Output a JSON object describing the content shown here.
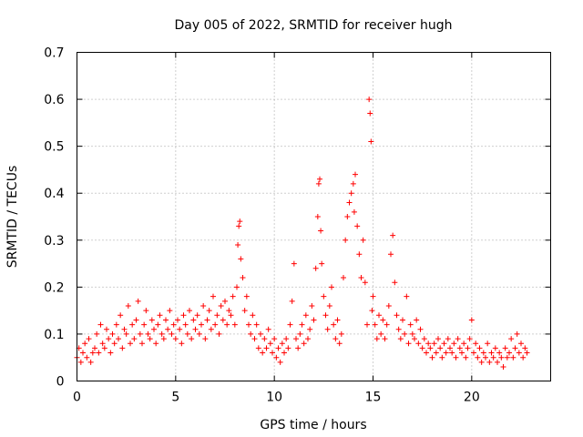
{
  "chart_data": {
    "type": "scatter",
    "title": "Day 005 of 2022, SRMTID for receiver hugh",
    "xlabel": "GPS time / hours",
    "ylabel": "SRMTID / TECUs",
    "xlim": [
      0,
      24
    ],
    "ylim": [
      0,
      0.7
    ],
    "xticks": [
      0,
      5,
      10,
      15,
      20
    ],
    "yticks": [
      0,
      0.1,
      0.2,
      0.3,
      0.4,
      0.5,
      0.6,
      0.7
    ],
    "x_tick_labels": [
      "0",
      "5",
      "10",
      "15",
      "20"
    ],
    "y_tick_labels": [
      "0",
      "0.1",
      "0.2",
      "0.3",
      "0.4",
      "0.5",
      "0.6",
      "0.7"
    ],
    "grid": true,
    "marker": "+",
    "colors": {
      "series": "#ff0000",
      "grid": "#a0a0a0"
    },
    "series": [
      {
        "name": "SRMTID",
        "points": [
          [
            0.0,
            0.05
          ],
          [
            0.1,
            0.07
          ],
          [
            0.2,
            0.04
          ],
          [
            0.3,
            0.06
          ],
          [
            0.4,
            0.08
          ],
          [
            0.5,
            0.05
          ],
          [
            0.6,
            0.09
          ],
          [
            0.7,
            0.04
          ],
          [
            0.8,
            0.06
          ],
          [
            0.9,
            0.07
          ],
          [
            1.0,
            0.1
          ],
          [
            1.1,
            0.06
          ],
          [
            1.2,
            0.12
          ],
          [
            1.3,
            0.08
          ],
          [
            1.4,
            0.07
          ],
          [
            1.5,
            0.11
          ],
          [
            1.6,
            0.09
          ],
          [
            1.7,
            0.06
          ],
          [
            1.8,
            0.1
          ],
          [
            1.9,
            0.08
          ],
          [
            2.0,
            0.12
          ],
          [
            2.1,
            0.09
          ],
          [
            2.2,
            0.14
          ],
          [
            2.3,
            0.07
          ],
          [
            2.4,
            0.11
          ],
          [
            2.5,
            0.1
          ],
          [
            2.6,
            0.16
          ],
          [
            2.7,
            0.08
          ],
          [
            2.8,
            0.12
          ],
          [
            2.9,
            0.09
          ],
          [
            3.0,
            0.13
          ],
          [
            3.1,
            0.17
          ],
          [
            3.2,
            0.1
          ],
          [
            3.3,
            0.08
          ],
          [
            3.4,
            0.12
          ],
          [
            3.5,
            0.15
          ],
          [
            3.6,
            0.1
          ],
          [
            3.7,
            0.09
          ],
          [
            3.8,
            0.13
          ],
          [
            3.9,
            0.11
          ],
          [
            4.0,
            0.08
          ],
          [
            4.1,
            0.12
          ],
          [
            4.2,
            0.14
          ],
          [
            4.3,
            0.1
          ],
          [
            4.4,
            0.09
          ],
          [
            4.5,
            0.13
          ],
          [
            4.6,
            0.11
          ],
          [
            4.7,
            0.15
          ],
          [
            4.8,
            0.1
          ],
          [
            4.9,
            0.12
          ],
          [
            5.0,
            0.09
          ],
          [
            5.1,
            0.13
          ],
          [
            5.2,
            0.11
          ],
          [
            5.3,
            0.08
          ],
          [
            5.4,
            0.14
          ],
          [
            5.5,
            0.12
          ],
          [
            5.6,
            0.1
          ],
          [
            5.7,
            0.15
          ],
          [
            5.8,
            0.09
          ],
          [
            5.9,
            0.13
          ],
          [
            6.0,
            0.11
          ],
          [
            6.1,
            0.14
          ],
          [
            6.2,
            0.1
          ],
          [
            6.3,
            0.12
          ],
          [
            6.4,
            0.16
          ],
          [
            6.5,
            0.09
          ],
          [
            6.6,
            0.13
          ],
          [
            6.7,
            0.15
          ],
          [
            6.8,
            0.11
          ],
          [
            6.9,
            0.18
          ],
          [
            7.0,
            0.12
          ],
          [
            7.1,
            0.14
          ],
          [
            7.2,
            0.1
          ],
          [
            7.3,
            0.16
          ],
          [
            7.4,
            0.13
          ],
          [
            7.5,
            0.17
          ],
          [
            7.6,
            0.12
          ],
          [
            7.7,
            0.15
          ],
          [
            7.8,
            0.14
          ],
          [
            7.9,
            0.18
          ],
          [
            8.0,
            0.12
          ],
          [
            8.1,
            0.2
          ],
          [
            8.15,
            0.29
          ],
          [
            8.2,
            0.33
          ],
          [
            8.25,
            0.34
          ],
          [
            8.3,
            0.26
          ],
          [
            8.4,
            0.22
          ],
          [
            8.5,
            0.15
          ],
          [
            8.6,
            0.18
          ],
          [
            8.7,
            0.12
          ],
          [
            8.8,
            0.1
          ],
          [
            8.9,
            0.14
          ],
          [
            9.0,
            0.09
          ],
          [
            9.1,
            0.12
          ],
          [
            9.2,
            0.07
          ],
          [
            9.3,
            0.1
          ],
          [
            9.4,
            0.06
          ],
          [
            9.5,
            0.09
          ],
          [
            9.6,
            0.07
          ],
          [
            9.7,
            0.11
          ],
          [
            9.8,
            0.08
          ],
          [
            9.9,
            0.06
          ],
          [
            10.0,
            0.09
          ],
          [
            10.1,
            0.05
          ],
          [
            10.2,
            0.07
          ],
          [
            10.3,
            0.04
          ],
          [
            10.4,
            0.08
          ],
          [
            10.5,
            0.06
          ],
          [
            10.6,
            0.09
          ],
          [
            10.7,
            0.07
          ],
          [
            10.8,
            0.12
          ],
          [
            10.9,
            0.17
          ],
          [
            11.0,
            0.25
          ],
          [
            11.1,
            0.09
          ],
          [
            11.2,
            0.07
          ],
          [
            11.3,
            0.1
          ],
          [
            11.4,
            0.12
          ],
          [
            11.5,
            0.08
          ],
          [
            11.6,
            0.14
          ],
          [
            11.7,
            0.09
          ],
          [
            11.8,
            0.11
          ],
          [
            11.9,
            0.16
          ],
          [
            12.0,
            0.13
          ],
          [
            12.1,
            0.24
          ],
          [
            12.2,
            0.35
          ],
          [
            12.25,
            0.42
          ],
          [
            12.3,
            0.43
          ],
          [
            12.35,
            0.32
          ],
          [
            12.4,
            0.25
          ],
          [
            12.5,
            0.18
          ],
          [
            12.6,
            0.14
          ],
          [
            12.7,
            0.11
          ],
          [
            12.8,
            0.16
          ],
          [
            12.9,
            0.2
          ],
          [
            13.0,
            0.12
          ],
          [
            13.1,
            0.09
          ],
          [
            13.2,
            0.13
          ],
          [
            13.3,
            0.08
          ],
          [
            13.4,
            0.1
          ],
          [
            13.5,
            0.22
          ],
          [
            13.6,
            0.3
          ],
          [
            13.7,
            0.35
          ],
          [
            13.8,
            0.38
          ],
          [
            13.9,
            0.4
          ],
          [
            14.0,
            0.42
          ],
          [
            14.05,
            0.36
          ],
          [
            14.1,
            0.44
          ],
          [
            14.2,
            0.33
          ],
          [
            14.3,
            0.27
          ],
          [
            14.4,
            0.22
          ],
          [
            14.5,
            0.3
          ],
          [
            14.6,
            0.21
          ],
          [
            14.7,
            0.12
          ],
          [
            14.8,
            0.6
          ],
          [
            14.85,
            0.57
          ],
          [
            14.9,
            0.51
          ],
          [
            14.95,
            0.15
          ],
          [
            15.0,
            0.18
          ],
          [
            15.1,
            0.12
          ],
          [
            15.2,
            0.09
          ],
          [
            15.3,
            0.14
          ],
          [
            15.4,
            0.1
          ],
          [
            15.5,
            0.13
          ],
          [
            15.6,
            0.09
          ],
          [
            15.7,
            0.12
          ],
          [
            15.8,
            0.16
          ],
          [
            15.9,
            0.27
          ],
          [
            16.0,
            0.31
          ],
          [
            16.1,
            0.21
          ],
          [
            16.2,
            0.14
          ],
          [
            16.3,
            0.11
          ],
          [
            16.4,
            0.09
          ],
          [
            16.5,
            0.13
          ],
          [
            16.6,
            0.1
          ],
          [
            16.7,
            0.18
          ],
          [
            16.8,
            0.08
          ],
          [
            16.9,
            0.12
          ],
          [
            17.0,
            0.1
          ],
          [
            17.1,
            0.09
          ],
          [
            17.2,
            0.13
          ],
          [
            17.3,
            0.08
          ],
          [
            17.4,
            0.11
          ],
          [
            17.5,
            0.07
          ],
          [
            17.6,
            0.09
          ],
          [
            17.7,
            0.06
          ],
          [
            17.8,
            0.08
          ],
          [
            17.9,
            0.07
          ],
          [
            18.0,
            0.05
          ],
          [
            18.1,
            0.08
          ],
          [
            18.2,
            0.06
          ],
          [
            18.3,
            0.09
          ],
          [
            18.4,
            0.07
          ],
          [
            18.5,
            0.05
          ],
          [
            18.6,
            0.08
          ],
          [
            18.7,
            0.06
          ],
          [
            18.8,
            0.09
          ],
          [
            18.9,
            0.07
          ],
          [
            19.0,
            0.06
          ],
          [
            19.1,
            0.08
          ],
          [
            19.2,
            0.05
          ],
          [
            19.3,
            0.09
          ],
          [
            19.4,
            0.07
          ],
          [
            19.5,
            0.06
          ],
          [
            19.6,
            0.08
          ],
          [
            19.7,
            0.05
          ],
          [
            19.8,
            0.07
          ],
          [
            19.9,
            0.09
          ],
          [
            20.0,
            0.13
          ],
          [
            20.1,
            0.06
          ],
          [
            20.2,
            0.08
          ],
          [
            20.3,
            0.05
          ],
          [
            20.4,
            0.07
          ],
          [
            20.5,
            0.04
          ],
          [
            20.6,
            0.06
          ],
          [
            20.7,
            0.05
          ],
          [
            20.8,
            0.08
          ],
          [
            20.9,
            0.04
          ],
          [
            21.0,
            0.06
          ],
          [
            21.1,
            0.05
          ],
          [
            21.2,
            0.07
          ],
          [
            21.3,
            0.04
          ],
          [
            21.4,
            0.06
          ],
          [
            21.5,
            0.05
          ],
          [
            21.6,
            0.03
          ],
          [
            21.7,
            0.07
          ],
          [
            21.8,
            0.05
          ],
          [
            21.9,
            0.06
          ],
          [
            22.0,
            0.09
          ],
          [
            22.1,
            0.05
          ],
          [
            22.2,
            0.07
          ],
          [
            22.3,
            0.1
          ],
          [
            22.4,
            0.06
          ],
          [
            22.5,
            0.08
          ],
          [
            22.6,
            0.05
          ],
          [
            22.7,
            0.07
          ],
          [
            22.8,
            0.06
          ]
        ]
      }
    ]
  }
}
